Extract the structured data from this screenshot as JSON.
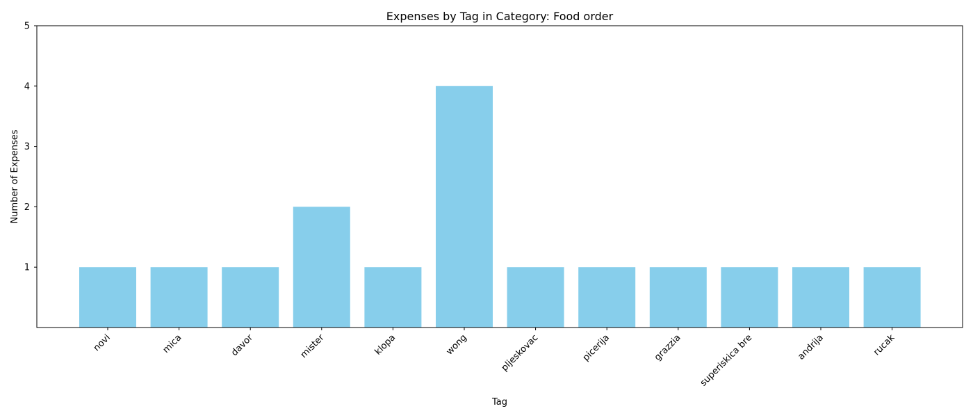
{
  "chart_data": {
    "type": "bar",
    "title": "Expenses by Tag in Category: Food order",
    "xlabel": "Tag",
    "ylabel": "Number of Expenses",
    "categories": [
      "novi",
      "mica",
      "davor",
      "mister",
      "klopa",
      "wong",
      "pljeskovac",
      "picerija",
      "grazzia",
      "superiskica bre",
      "andrija",
      "rucak"
    ],
    "values": [
      1,
      1,
      1,
      2,
      1,
      4,
      1,
      1,
      1,
      1,
      1,
      1
    ],
    "ylim": [
      0,
      5
    ],
    "yticks": [
      1,
      2,
      3,
      4,
      5
    ],
    "grid": false,
    "bar_color": "#87CEEB",
    "axis_color": "#000000"
  }
}
